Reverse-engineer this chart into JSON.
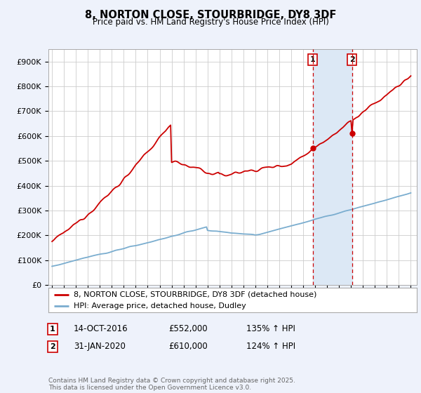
{
  "title": "8, NORTON CLOSE, STOURBRIDGE, DY8 3DF",
  "subtitle": "Price paid vs. HM Land Registry's House Price Index (HPI)",
  "ylabel_ticks": [
    "£0",
    "£100K",
    "£200K",
    "£300K",
    "£400K",
    "£500K",
    "£600K",
    "£700K",
    "£800K",
    "£900K"
  ],
  "ytick_values": [
    0,
    100000,
    200000,
    300000,
    400000,
    500000,
    600000,
    700000,
    800000,
    900000
  ],
  "ylim": [
    0,
    950000
  ],
  "xlim_start": 1994.7,
  "xlim_end": 2025.5,
  "red_line_color": "#cc0000",
  "blue_line_color": "#7aadcf",
  "shade_color": "#dce8f5",
  "marker1_x": 2016.79,
  "marker1_y": 552000,
  "marker2_x": 2020.08,
  "marker2_y": 610000,
  "vline1_x": 2016.79,
  "vline2_x": 2020.08,
  "legend_red": "8, NORTON CLOSE, STOURBRIDGE, DY8 3DF (detached house)",
  "legend_blue": "HPI: Average price, detached house, Dudley",
  "note1_label": "1",
  "note1_date": "14-OCT-2016",
  "note1_price": "£552,000",
  "note1_hpi": "135% ↑ HPI",
  "note2_label": "2",
  "note2_date": "31-JAN-2020",
  "note2_price": "£610,000",
  "note2_hpi": "124% ↑ HPI",
  "footer": "Contains HM Land Registry data © Crown copyright and database right 2025.\nThis data is licensed under the Open Government Licence v3.0.",
  "background_color": "#eef2fb",
  "plot_bg_color": "#ffffff",
  "grid_color": "#cccccc"
}
